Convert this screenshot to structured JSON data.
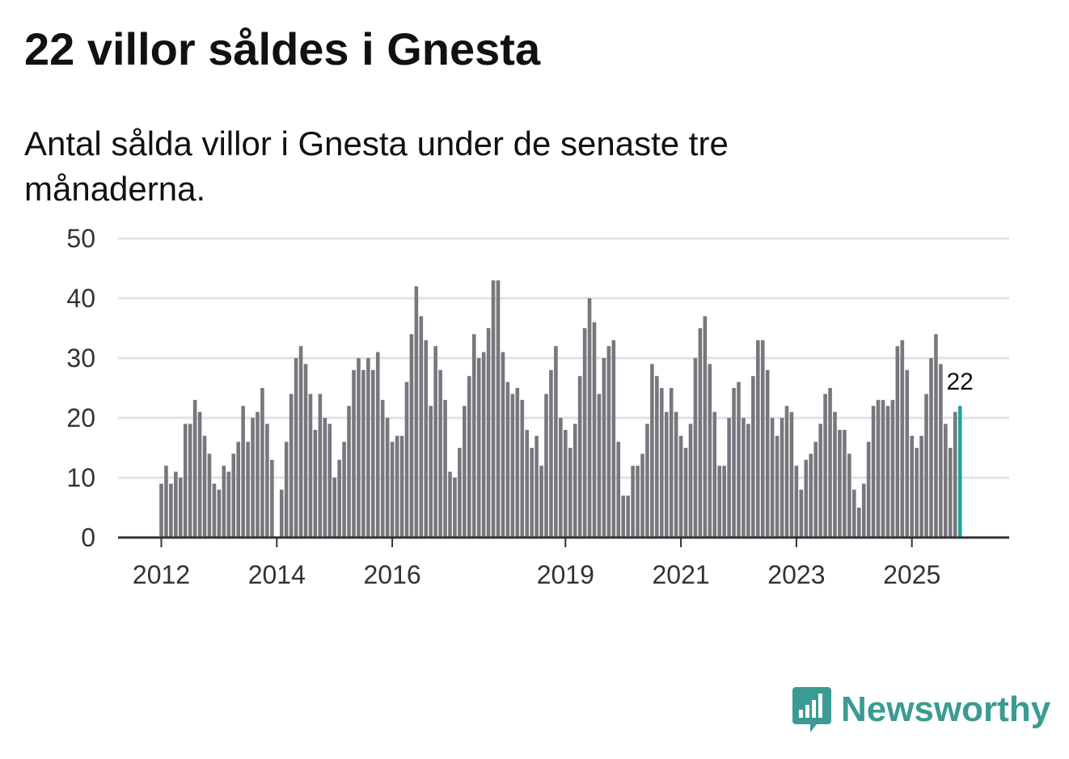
{
  "title": "22 villor såldes i Gnesta",
  "subtitle": "Antal sålda villor i Gnesta under de senaste tre månaderna.",
  "brand": {
    "name": "Newsworthy"
  },
  "colors": {
    "bar": "#77777d",
    "highlight": "#21a39a",
    "grid": "#e2e2e2",
    "axis": "#333333",
    "brand": "#3b9b92"
  },
  "chart_data": {
    "type": "bar",
    "title": "22 villor såldes i Gnesta",
    "subtitle": "Antal sålda villor i Gnesta under de senaste tre månaderna.",
    "xlabel": "",
    "ylabel": "",
    "ylim": [
      0,
      50
    ],
    "yticks": [
      0,
      10,
      20,
      30,
      40,
      50
    ],
    "xtick_labels": [
      {
        "label": "2012",
        "index": 0
      },
      {
        "label": "2014",
        "index": 24
      },
      {
        "label": "2016",
        "index": 48
      },
      {
        "label": "2019",
        "index": 84
      },
      {
        "label": "2021",
        "index": 108
      },
      {
        "label": "2023",
        "index": 132
      },
      {
        "label": "2025",
        "index": 156
      }
    ],
    "annotation": {
      "text": "22",
      "index": 166
    },
    "highlight_index": 166,
    "values": [
      9,
      12,
      9,
      11,
      10,
      19,
      19,
      23,
      21,
      17,
      14,
      9,
      8,
      12,
      11,
      14,
      16,
      22,
      16,
      20,
      21,
      25,
      19,
      13,
      0,
      8,
      16,
      24,
      30,
      32,
      29,
      24,
      18,
      24,
      20,
      19,
      10,
      13,
      16,
      22,
      28,
      30,
      28,
      30,
      28,
      31,
      23,
      20,
      16,
      17,
      17,
      26,
      34,
      42,
      37,
      33,
      22,
      32,
      28,
      23,
      11,
      10,
      15,
      22,
      27,
      34,
      30,
      31,
      35,
      43,
      43,
      31,
      26,
      24,
      25,
      23,
      18,
      15,
      17,
      12,
      24,
      28,
      32,
      20,
      18,
      15,
      19,
      27,
      35,
      40,
      36,
      24,
      30,
      32,
      33,
      16,
      7,
      7,
      12,
      12,
      14,
      19,
      29,
      27,
      25,
      21,
      25,
      21,
      17,
      15,
      19,
      30,
      35,
      37,
      29,
      21,
      12,
      12,
      20,
      25,
      26,
      20,
      19,
      27,
      33,
      33,
      28,
      20,
      17,
      20,
      22,
      21,
      12,
      8,
      13,
      14,
      16,
      19,
      24,
      25,
      21,
      18,
      18,
      14,
      8,
      5,
      9,
      16,
      22,
      23,
      23,
      22,
      23,
      32,
      33,
      28,
      17,
      15,
      17,
      24,
      30,
      34,
      29,
      19,
      15,
      21,
      22
    ]
  }
}
